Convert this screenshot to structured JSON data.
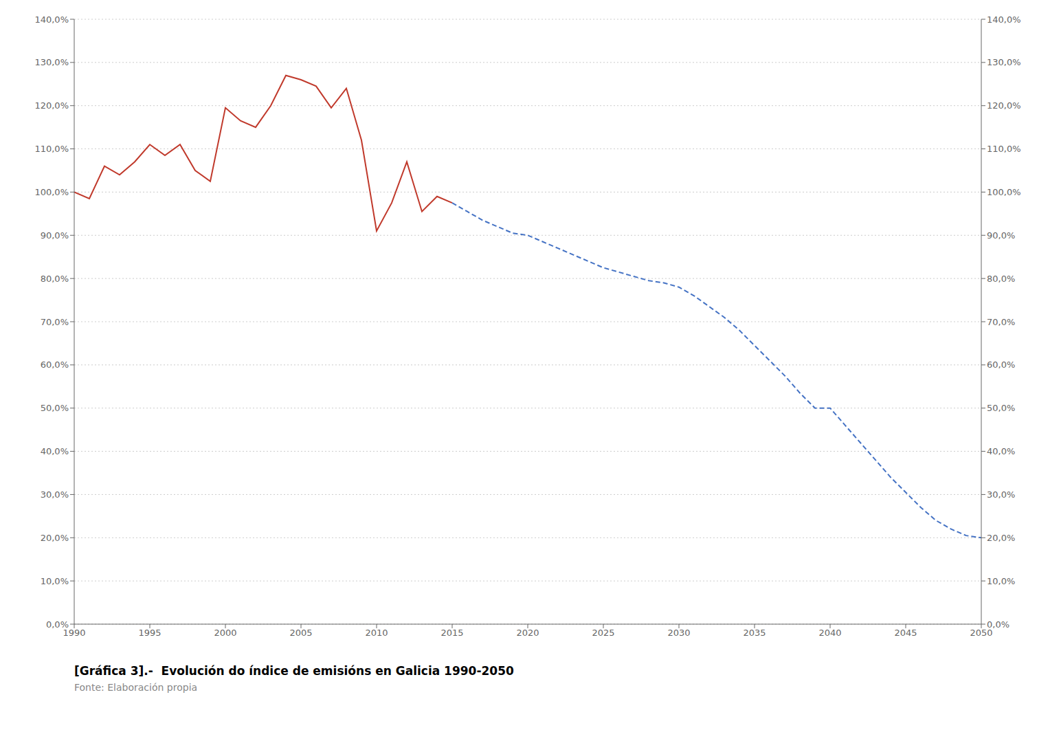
{
  "chart_data": {
    "type": "line",
    "title": "[Gráfica 3].-  Evolución do índice de emisións en Galicia 1990-2050",
    "subtitle": "Fonte: Elaboración propia",
    "x": [
      1990,
      1991,
      1992,
      1993,
      1994,
      1995,
      1996,
      1997,
      1998,
      1999,
      2000,
      2001,
      2002,
      2003,
      2004,
      2005,
      2006,
      2007,
      2008,
      2009,
      2010,
      2011,
      2012,
      2013,
      2014,
      2015,
      2016,
      2017,
      2018,
      2019,
      2020,
      2021,
      2022,
      2023,
      2024,
      2025,
      2026,
      2027,
      2028,
      2029,
      2030,
      2031,
      2032,
      2033,
      2034,
      2035,
      2036,
      2037,
      2038,
      2039,
      2040,
      2041,
      2042,
      2043,
      2044,
      2045,
      2046,
      2047,
      2048,
      2049,
      2050
    ],
    "series": [
      {
        "color": "#c0392b",
        "line_style": "solid",
        "values": [
          100.0,
          98.5,
          106.0,
          104.0,
          107.0,
          111.0,
          108.5,
          111.0,
          105.0,
          102.5,
          119.5,
          116.5,
          115.0,
          120.0,
          127.0,
          126.0,
          124.5,
          119.5,
          124.0,
          112.0,
          91.0,
          97.5,
          107.0,
          95.5,
          99.0,
          97.5,
          null,
          null,
          null,
          null,
          null,
          null,
          null,
          null,
          null,
          null,
          null,
          null,
          null,
          null,
          null,
          null,
          null,
          null,
          null,
          null,
          null,
          null,
          null,
          null,
          null,
          null,
          null,
          null,
          null,
          null,
          null,
          null,
          null,
          null,
          null
        ]
      },
      {
        "color": "#4472c4",
        "line_style": "dashed",
        "values": [
          null,
          null,
          null,
          null,
          null,
          null,
          null,
          null,
          null,
          null,
          null,
          null,
          null,
          null,
          null,
          null,
          null,
          null,
          null,
          null,
          null,
          null,
          null,
          null,
          null,
          97.5,
          95.5,
          93.5,
          92.0,
          90.5,
          90.0,
          88.5,
          87.0,
          85.5,
          84.0,
          82.5,
          81.5,
          80.5,
          79.5,
          79.0,
          78.0,
          76.0,
          73.5,
          71.0,
          68.0,
          64.5,
          61.0,
          57.5,
          53.5,
          50.0,
          50.0,
          46.0,
          42.0,
          38.0,
          34.0,
          30.5,
          27.0,
          24.0,
          22.0,
          20.5,
          20.0
        ]
      }
    ],
    "xlim": [
      1990,
      2050
    ],
    "xticks": [
      1990,
      1995,
      2000,
      2005,
      2010,
      2015,
      2020,
      2025,
      2030,
      2035,
      2040,
      2045,
      2050
    ],
    "ylim": [
      0.0,
      140.0
    ],
    "yticks": [
      {
        "value": 0,
        "label": "0,0%"
      },
      {
        "value": 10,
        "label": "10,0%"
      },
      {
        "value": 20,
        "label": "20,0%"
      },
      {
        "value": 30,
        "label": "30,0%"
      },
      {
        "value": 40,
        "label": "40,0%"
      },
      {
        "value": 50,
        "label": "50,0%"
      },
      {
        "value": 60,
        "label": "60,0%"
      },
      {
        "value": 70,
        "label": "70,0%"
      },
      {
        "value": 80,
        "label": "80,0%"
      },
      {
        "value": 90,
        "label": "90,0%"
      },
      {
        "value": 100,
        "label": "100,0%"
      },
      {
        "value": 110,
        "label": "110,0%"
      },
      {
        "value": 120,
        "label": "120,0%"
      },
      {
        "value": 130,
        "label": "130,0%"
      },
      {
        "value": 140,
        "label": "140,0%"
      }
    ],
    "y2lim": [
      0.0,
      140.0
    ],
    "y2ticks": [
      {
        "value": 0,
        "label": "0,0%"
      },
      {
        "value": 10,
        "label": "10,0%"
      },
      {
        "value": 20,
        "label": "20,0%"
      },
      {
        "value": 30,
        "label": "30,0%"
      },
      {
        "value": 40,
        "label": "40,0%"
      },
      {
        "value": 50,
        "label": "50,0%"
      },
      {
        "value": 60,
        "label": "60,0%"
      },
      {
        "value": 70,
        "label": "70,0%"
      },
      {
        "value": 80,
        "label": "80,0%"
      },
      {
        "value": 90,
        "label": "90,0%"
      },
      {
        "value": 100,
        "label": "100,0%"
      },
      {
        "value": 110,
        "label": "110,0%"
      },
      {
        "value": 120,
        "label": "120,0%"
      },
      {
        "value": 130,
        "label": "130,0%"
      },
      {
        "value": 140,
        "label": "140,0%"
      }
    ],
    "grid": true
  }
}
